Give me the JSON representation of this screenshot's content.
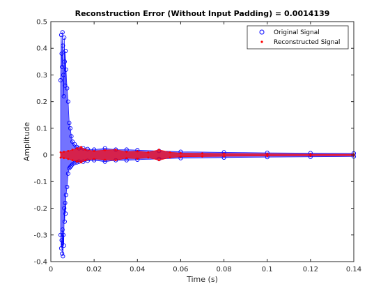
{
  "chart_data": {
    "type": "scatter",
    "title": "Reconstruction Error (Without Input Padding) = 0.0014139",
    "xlabel": "Time (s)",
    "ylabel": "Amplitude",
    "xlim": [
      0,
      0.14
    ],
    "ylim": [
      -0.4,
      0.5
    ],
    "x_ticks": [
      0,
      0.02,
      0.04,
      0.06,
      0.08,
      0.1,
      0.12,
      0.14
    ],
    "x_tick_labels": [
      "0",
      "0.02",
      "0.04",
      "0.06",
      "0.08",
      "0.1",
      "0.12",
      "0.14"
    ],
    "y_ticks": [
      -0.4,
      -0.3,
      -0.2,
      -0.1,
      0,
      0.1,
      0.2,
      0.3,
      0.4,
      0.5
    ],
    "y_tick_labels": [
      "-0.4",
      "-0.3",
      "-0.2",
      "-0.1",
      "0",
      "0.1",
      "0.2",
      "0.3",
      "0.4",
      "0.5"
    ],
    "grid": false,
    "legend_position": "top-right",
    "series": [
      {
        "name": "Original Signal",
        "marker": "circle",
        "color": "#0000ff",
        "x": [
          0.0045,
          0.0048,
          0.005,
          0.0052,
          0.0054,
          0.0056,
          0.0058,
          0.006,
          0.0062,
          0.0064,
          0.0066,
          0.0068,
          0.007,
          0.0075,
          0.008,
          0.0085,
          0.009,
          0.0095,
          0.01,
          0.011,
          0.012,
          0.013,
          0.015,
          0.017,
          0.02,
          0.025,
          0.03,
          0.035,
          0.04,
          0.05,
          0.06,
          0.08,
          0.1,
          0.12,
          0.14
        ],
        "y": [
          0.28,
          0.45,
          0.38,
          0.33,
          0.46,
          0.41,
          0.3,
          0.22,
          0.44,
          0.35,
          0.26,
          0.39,
          0.32,
          0.25,
          0.2,
          0.12,
          0.1,
          0.07,
          0.05,
          0.04,
          0.03,
          0.025,
          0.025,
          0.022,
          0.02,
          0.025,
          0.02,
          0.02,
          0.018,
          0.015,
          0.012,
          0.01,
          0.008,
          0.007,
          0.006
        ],
        "y_lower": [
          -0.3,
          -0.35,
          -0.32,
          -0.37,
          -0.28,
          -0.38,
          -0.3,
          -0.34,
          -0.2,
          -0.25,
          -0.18,
          -0.22,
          -0.15,
          -0.12,
          -0.07,
          -0.05,
          -0.045,
          -0.04,
          -0.035,
          -0.03,
          -0.028,
          -0.025,
          -0.025,
          -0.022,
          -0.02,
          -0.025,
          -0.02,
          -0.02,
          -0.018,
          -0.015,
          -0.012,
          -0.01,
          -0.008,
          -0.007,
          -0.006
        ]
      },
      {
        "name": "Reconstructed Signal",
        "marker": "dot",
        "color": "#ff0000",
        "x": [
          0.0045,
          0.006,
          0.008,
          0.01,
          0.012,
          0.014,
          0.016,
          0.02,
          0.025,
          0.03,
          0.035,
          0.04,
          0.045,
          0.05,
          0.055,
          0.06,
          0.07,
          0.08,
          0.1,
          0.12,
          0.14
        ],
        "y": [
          0.01,
          0.012,
          0.015,
          0.02,
          0.025,
          0.03,
          0.02,
          0.015,
          0.018,
          0.02,
          0.012,
          0.014,
          0.01,
          0.02,
          0.01,
          0.007,
          0.006,
          0.005,
          0.004,
          0.003,
          0.003
        ],
        "y_lower": [
          -0.01,
          -0.012,
          -0.015,
          -0.02,
          -0.025,
          -0.028,
          -0.02,
          -0.015,
          -0.018,
          -0.02,
          -0.012,
          -0.014,
          -0.01,
          -0.02,
          -0.01,
          -0.007,
          -0.006,
          -0.005,
          -0.004,
          -0.003,
          -0.003
        ]
      }
    ]
  }
}
